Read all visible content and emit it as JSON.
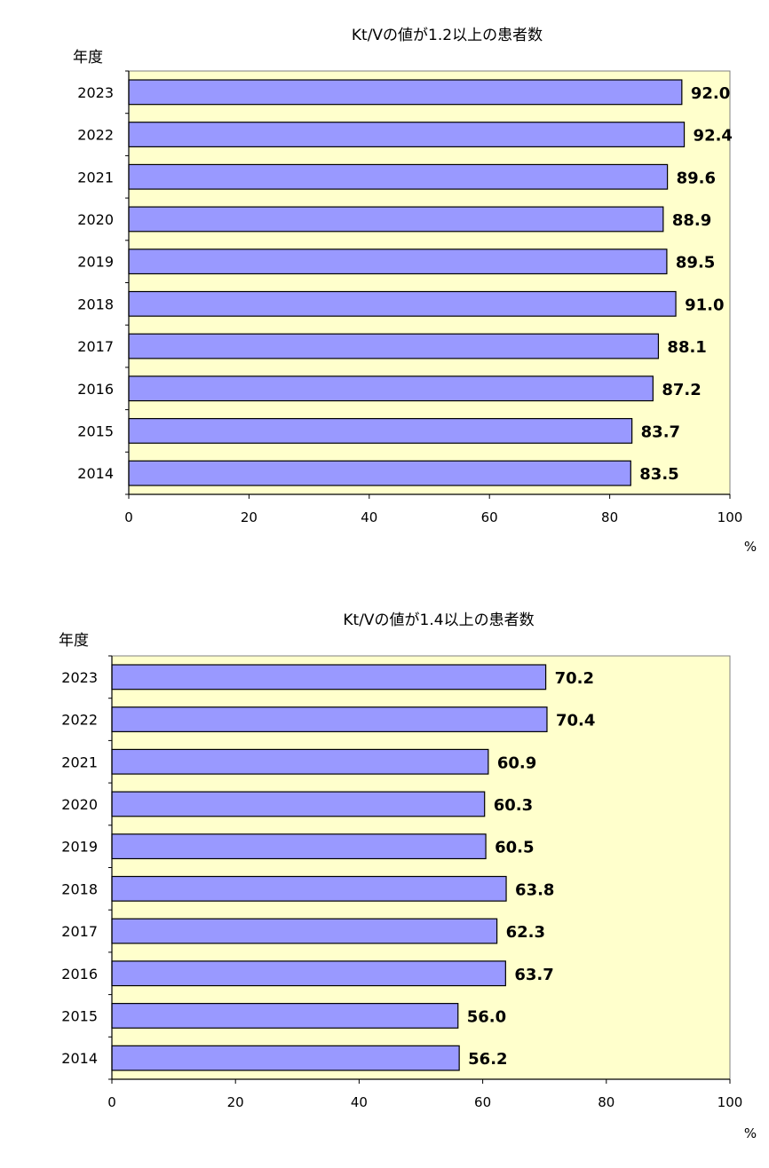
{
  "chart_data": [
    {
      "type": "bar",
      "orientation": "horizontal",
      "title": "Kt/Vの値が1.2以上の患者数",
      "ylabel": "年度",
      "xlabel": "%",
      "categories": [
        "2023",
        "2022",
        "2021",
        "2020",
        "2019",
        "2018",
        "2017",
        "2016",
        "2015",
        "2014"
      ],
      "values": [
        92.0,
        92.4,
        89.6,
        88.9,
        89.5,
        91.0,
        88.1,
        87.2,
        83.7,
        83.5
      ],
      "value_labels": [
        "92.0",
        "92.4",
        "89.6",
        "88.9",
        "89.5",
        "91.0",
        "88.1",
        "87.2",
        "83.7",
        "83.5"
      ],
      "xlim": [
        0,
        100
      ],
      "xticks": [
        0,
        20,
        40,
        60,
        80,
        100
      ],
      "grid": false,
      "colors": {
        "bar": "#9999ff",
        "plot_bg": "#ffffcc",
        "stroke": "#000000"
      }
    },
    {
      "type": "bar",
      "orientation": "horizontal",
      "title": "Kt/Vの値が1.4以上の患者数",
      "ylabel": "年度",
      "xlabel": "%",
      "categories": [
        "2023",
        "2022",
        "2021",
        "2020",
        "2019",
        "2018",
        "2017",
        "2016",
        "2015",
        "2014"
      ],
      "values": [
        70.2,
        70.4,
        60.9,
        60.3,
        60.5,
        63.8,
        62.3,
        63.7,
        56.0,
        56.2
      ],
      "value_labels": [
        "70.2",
        "70.4",
        "60.9",
        "60.3",
        "60.5",
        "63.8",
        "62.3",
        "63.7",
        "56.0",
        "56.2"
      ],
      "xlim": [
        0,
        100
      ],
      "xticks": [
        0,
        20,
        40,
        60,
        80,
        100
      ],
      "grid": false,
      "colors": {
        "bar": "#9999ff",
        "plot_bg": "#ffffcc",
        "stroke": "#000000"
      }
    }
  ]
}
